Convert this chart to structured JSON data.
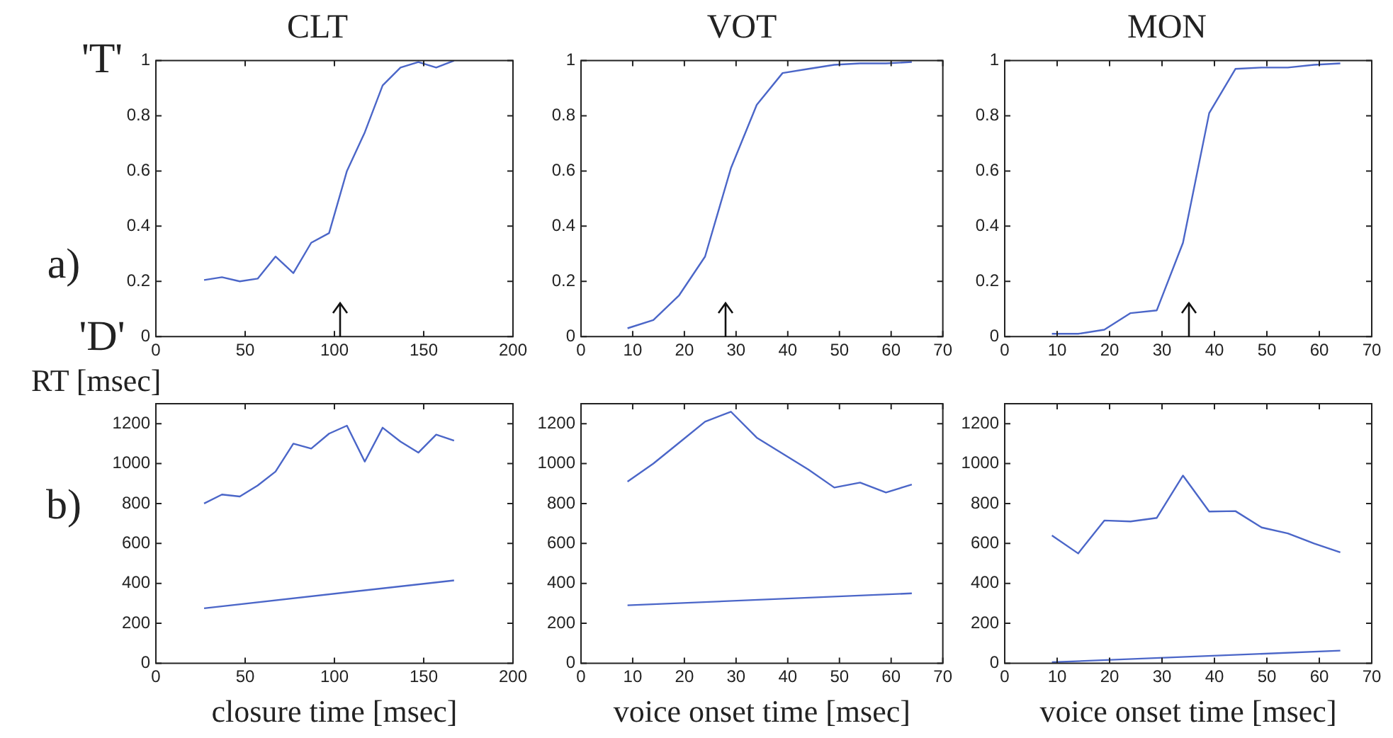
{
  "chart_data": [
    {
      "type": "line",
      "title": "CLT",
      "annotations": [
        "a)",
        "'T'",
        "'D'"
      ],
      "ref_lines": [
        {
          "axis": "x",
          "value": 103
        }
      ],
      "xlim": [
        0,
        200
      ],
      "xticks": [
        0,
        50,
        100,
        150,
        200
      ],
      "ylim": [
        0,
        1
      ],
      "yticks": [
        0,
        0.2,
        0.4,
        0.6,
        0.8,
        1
      ],
      "series": [
        {
          "color": "#4b66c8",
          "x": [
            27,
            37,
            47,
            57,
            67,
            77,
            87,
            97,
            107,
            117,
            127,
            137,
            147,
            157,
            167
          ],
          "values": [
            0.205,
            0.215,
            0.2,
            0.21,
            0.29,
            0.23,
            0.34,
            0.375,
            0.6,
            0.74,
            0.91,
            0.975,
            0.995,
            0.975,
            1.0
          ]
        }
      ]
    },
    {
      "type": "line",
      "title": "VOT",
      "ref_lines": [
        {
          "axis": "x",
          "value": 28
        }
      ],
      "xlim": [
        0,
        70
      ],
      "xticks": [
        0,
        10,
        20,
        30,
        40,
        50,
        60,
        70
      ],
      "ylim": [
        0,
        1
      ],
      "yticks": [
        0,
        0.2,
        0.4,
        0.6,
        0.8,
        1
      ],
      "series": [
        {
          "color": "#4b66c8",
          "x": [
            9,
            14,
            19,
            24,
            29,
            34,
            39,
            44,
            49,
            54,
            59,
            64
          ],
          "values": [
            0.03,
            0.06,
            0.15,
            0.29,
            0.61,
            0.84,
            0.955,
            0.97,
            0.985,
            0.99,
            0.99,
            0.995
          ]
        }
      ]
    },
    {
      "type": "line",
      "title": "MON",
      "ref_lines": [
        {
          "axis": "x",
          "value": 35
        }
      ],
      "xlim": [
        0,
        70
      ],
      "xticks": [
        0,
        10,
        20,
        30,
        40,
        50,
        60,
        70
      ],
      "ylim": [
        0,
        1
      ],
      "yticks": [
        0,
        0.2,
        0.4,
        0.6,
        0.8,
        1
      ],
      "series": [
        {
          "color": "#4b66c8",
          "x": [
            9,
            14,
            19,
            24,
            29,
            34,
            39,
            44,
            49,
            54,
            59,
            64
          ],
          "values": [
            0.01,
            0.01,
            0.025,
            0.085,
            0.095,
            0.34,
            0.81,
            0.97,
            0.975,
            0.975,
            0.985,
            0.99
          ]
        }
      ]
    },
    {
      "type": "line",
      "ylabel": "RT [msec]",
      "xlabel": "closure time [msec]",
      "annotations": [
        "b)"
      ],
      "xlim": [
        0,
        200
      ],
      "xticks": [
        0,
        50,
        100,
        150,
        200
      ],
      "ylim": [
        0,
        1300
      ],
      "yticks": [
        0,
        200,
        400,
        600,
        800,
        1000,
        1200
      ],
      "series": [
        {
          "color": "#4b66c8",
          "x": [
            27,
            37,
            47,
            57,
            67,
            77,
            87,
            97,
            107,
            117,
            127,
            137,
            147,
            157,
            167
          ],
          "values": [
            800,
            845,
            835,
            890,
            960,
            1100,
            1075,
            1150,
            1190,
            1010,
            1180,
            1110,
            1055,
            1145,
            1115
          ]
        },
        {
          "color": "#4b66c8",
          "x": [
            27,
            167
          ],
          "values": [
            275,
            415
          ]
        }
      ]
    },
    {
      "type": "line",
      "xlabel": "voice onset time [msec]",
      "xlim": [
        0,
        70
      ],
      "xticks": [
        0,
        10,
        20,
        30,
        40,
        50,
        60,
        70
      ],
      "ylim": [
        0,
        1300
      ],
      "yticks": [
        0,
        200,
        400,
        600,
        800,
        1000,
        1200
      ],
      "series": [
        {
          "color": "#4b66c8",
          "x": [
            9,
            14,
            19,
            24,
            29,
            34,
            39,
            44,
            49,
            54,
            59,
            64
          ],
          "values": [
            910,
            1000,
            1105,
            1210,
            1260,
            1130,
            1050,
            970,
            880,
            905,
            855,
            895
          ]
        },
        {
          "color": "#4b66c8",
          "x": [
            9,
            64
          ],
          "values": [
            290,
            350
          ]
        }
      ]
    },
    {
      "type": "line",
      "xlabel": "voice onset time [msec]",
      "xlim": [
        0,
        70
      ],
      "xticks": [
        0,
        10,
        20,
        30,
        40,
        50,
        60,
        70
      ],
      "ylim": [
        0,
        1300
      ],
      "yticks": [
        0,
        200,
        400,
        600,
        800,
        1000,
        1200
      ],
      "series": [
        {
          "color": "#4b66c8",
          "x": [
            9,
            14,
            19,
            24,
            29,
            34,
            39,
            44,
            49,
            54,
            59,
            64
          ],
          "values": [
            640,
            550,
            715,
            710,
            728,
            940,
            760,
            762,
            680,
            650,
            600,
            555
          ]
        },
        {
          "color": "#4b66c8",
          "x": [
            9,
            64
          ],
          "values": [
            5,
            63
          ]
        }
      ]
    }
  ]
}
